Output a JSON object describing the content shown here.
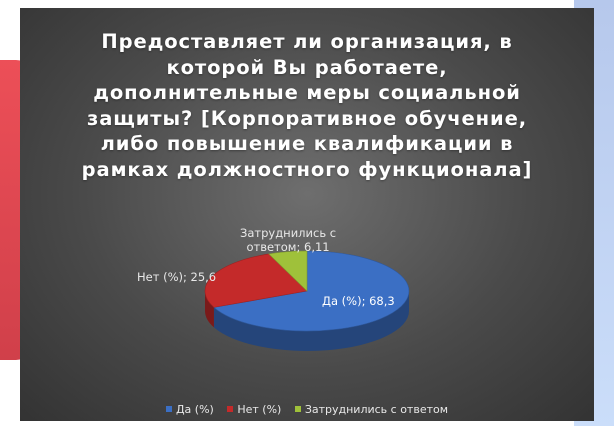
{
  "chart_data": {
    "type": "pie",
    "title": "Предоставляет ли организация, в которой Вы работаете, дополнительные меры социальной защиты?  [Корпоративное обучение, либо повышение квалификации в рамках должностного функционала]",
    "title_lines": [
      "Предоставляет ли организация, в",
      "которой Вы работаете,",
      "дополнительные меры социальной",
      "защиты?  [Корпоративное обучение,",
      "либо повышение квалификации в",
      "рамках должностного функционала]"
    ],
    "categories": [
      "Да (%)",
      "Нет (%)",
      "Затруднились с ответом"
    ],
    "values": [
      68.3,
      25.6,
      6.11
    ],
    "data_labels": {
      "yes": "Да (%); 68,3",
      "no": "Нет (%); 25,6",
      "hard_line1": "Затруднились с",
      "hard_line2": "ответом; 6,11"
    },
    "legend": {
      "placement": "bottom",
      "items": [
        "Да (%)",
        "Нет (%)",
        "Затруднились с ответом"
      ]
    },
    "colors": {
      "yes": "#3b6fc4",
      "no": "#c42a2a",
      "hard": "#9fc13a"
    }
  }
}
